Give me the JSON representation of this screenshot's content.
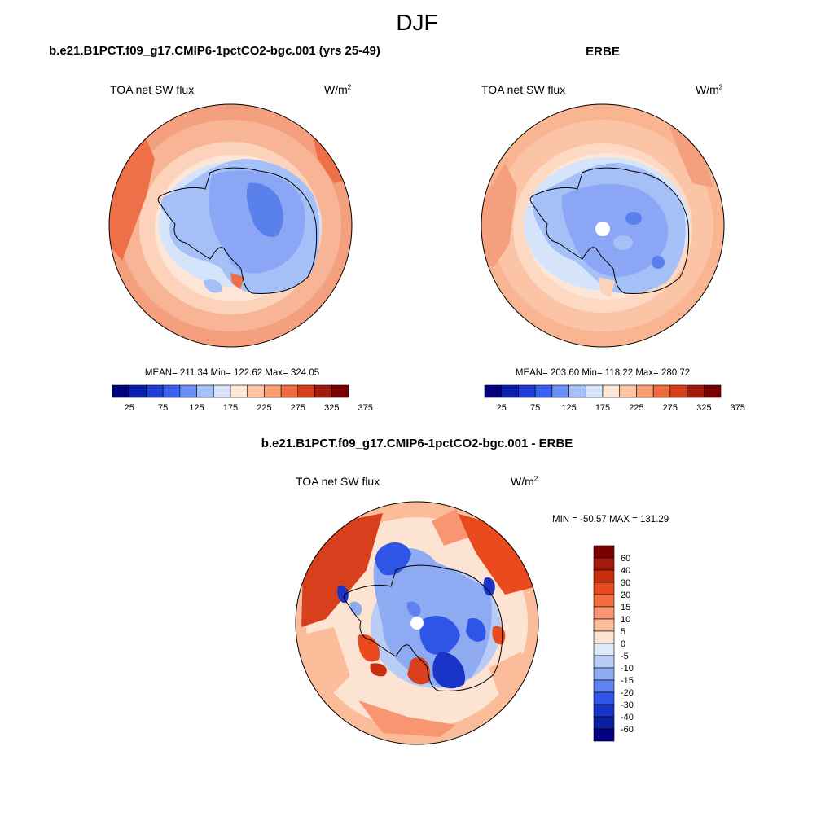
{
  "figure": {
    "season": "DJF"
  },
  "panels": {
    "model": {
      "title": "b.e21.B1PCT.f09_g17.CMIP6-1pctCO2-bgc.001 (yrs 25-49)",
      "variable": "TOA net SW flux",
      "units_base": "W/m",
      "units_exp": "2",
      "stats": "MEAN= 211.34  Min= 122.62  Max= 324.05"
    },
    "obs": {
      "title": "ERBE",
      "variable": "TOA net SW flux",
      "units_base": "W/m",
      "units_exp": "2",
      "stats": "MEAN= 203.60  Min= 118.22  Max= 280.72"
    },
    "diff": {
      "title": "b.e21.B1PCT.f09_g17.CMIP6-1pctCO2-bgc.001 - ERBE",
      "variable": "TOA net SW flux",
      "units_base": "W/m",
      "units_exp": "2",
      "stats": "MIN = -50.57 MAX = 131.29"
    }
  },
  "colorbar_abs": {
    "labels": [
      "25",
      "75",
      "125",
      "175",
      "225",
      "275",
      "325",
      "375"
    ],
    "colors": [
      "#000080",
      "#0a1fb0",
      "#1f3fd6",
      "#3a62f0",
      "#6b8ff5",
      "#a5bff7",
      "#d6e4fb",
      "#fde6d6",
      "#fcc4a3",
      "#f99d74",
      "#f06a40",
      "#d8401d",
      "#a41a0e",
      "#7a0000"
    ]
  },
  "colorbar_diff": {
    "labels": [
      "60",
      "40",
      "30",
      "20",
      "15",
      "10",
      "5",
      "0",
      "-5",
      "-10",
      "-15",
      "-20",
      "-30",
      "-40",
      "-60"
    ],
    "colors": [
      "#7a0000",
      "#a41a0e",
      "#c92e10",
      "#e84a1e",
      "#f56c3f",
      "#f99672",
      "#fbbc9a",
      "#fde3d2",
      "#dfe9fb",
      "#b8ccf6",
      "#8eaaf2",
      "#5e83ee",
      "#2f55e6",
      "#1a34c8",
      "#0a1f9e",
      "#000080"
    ]
  }
}
